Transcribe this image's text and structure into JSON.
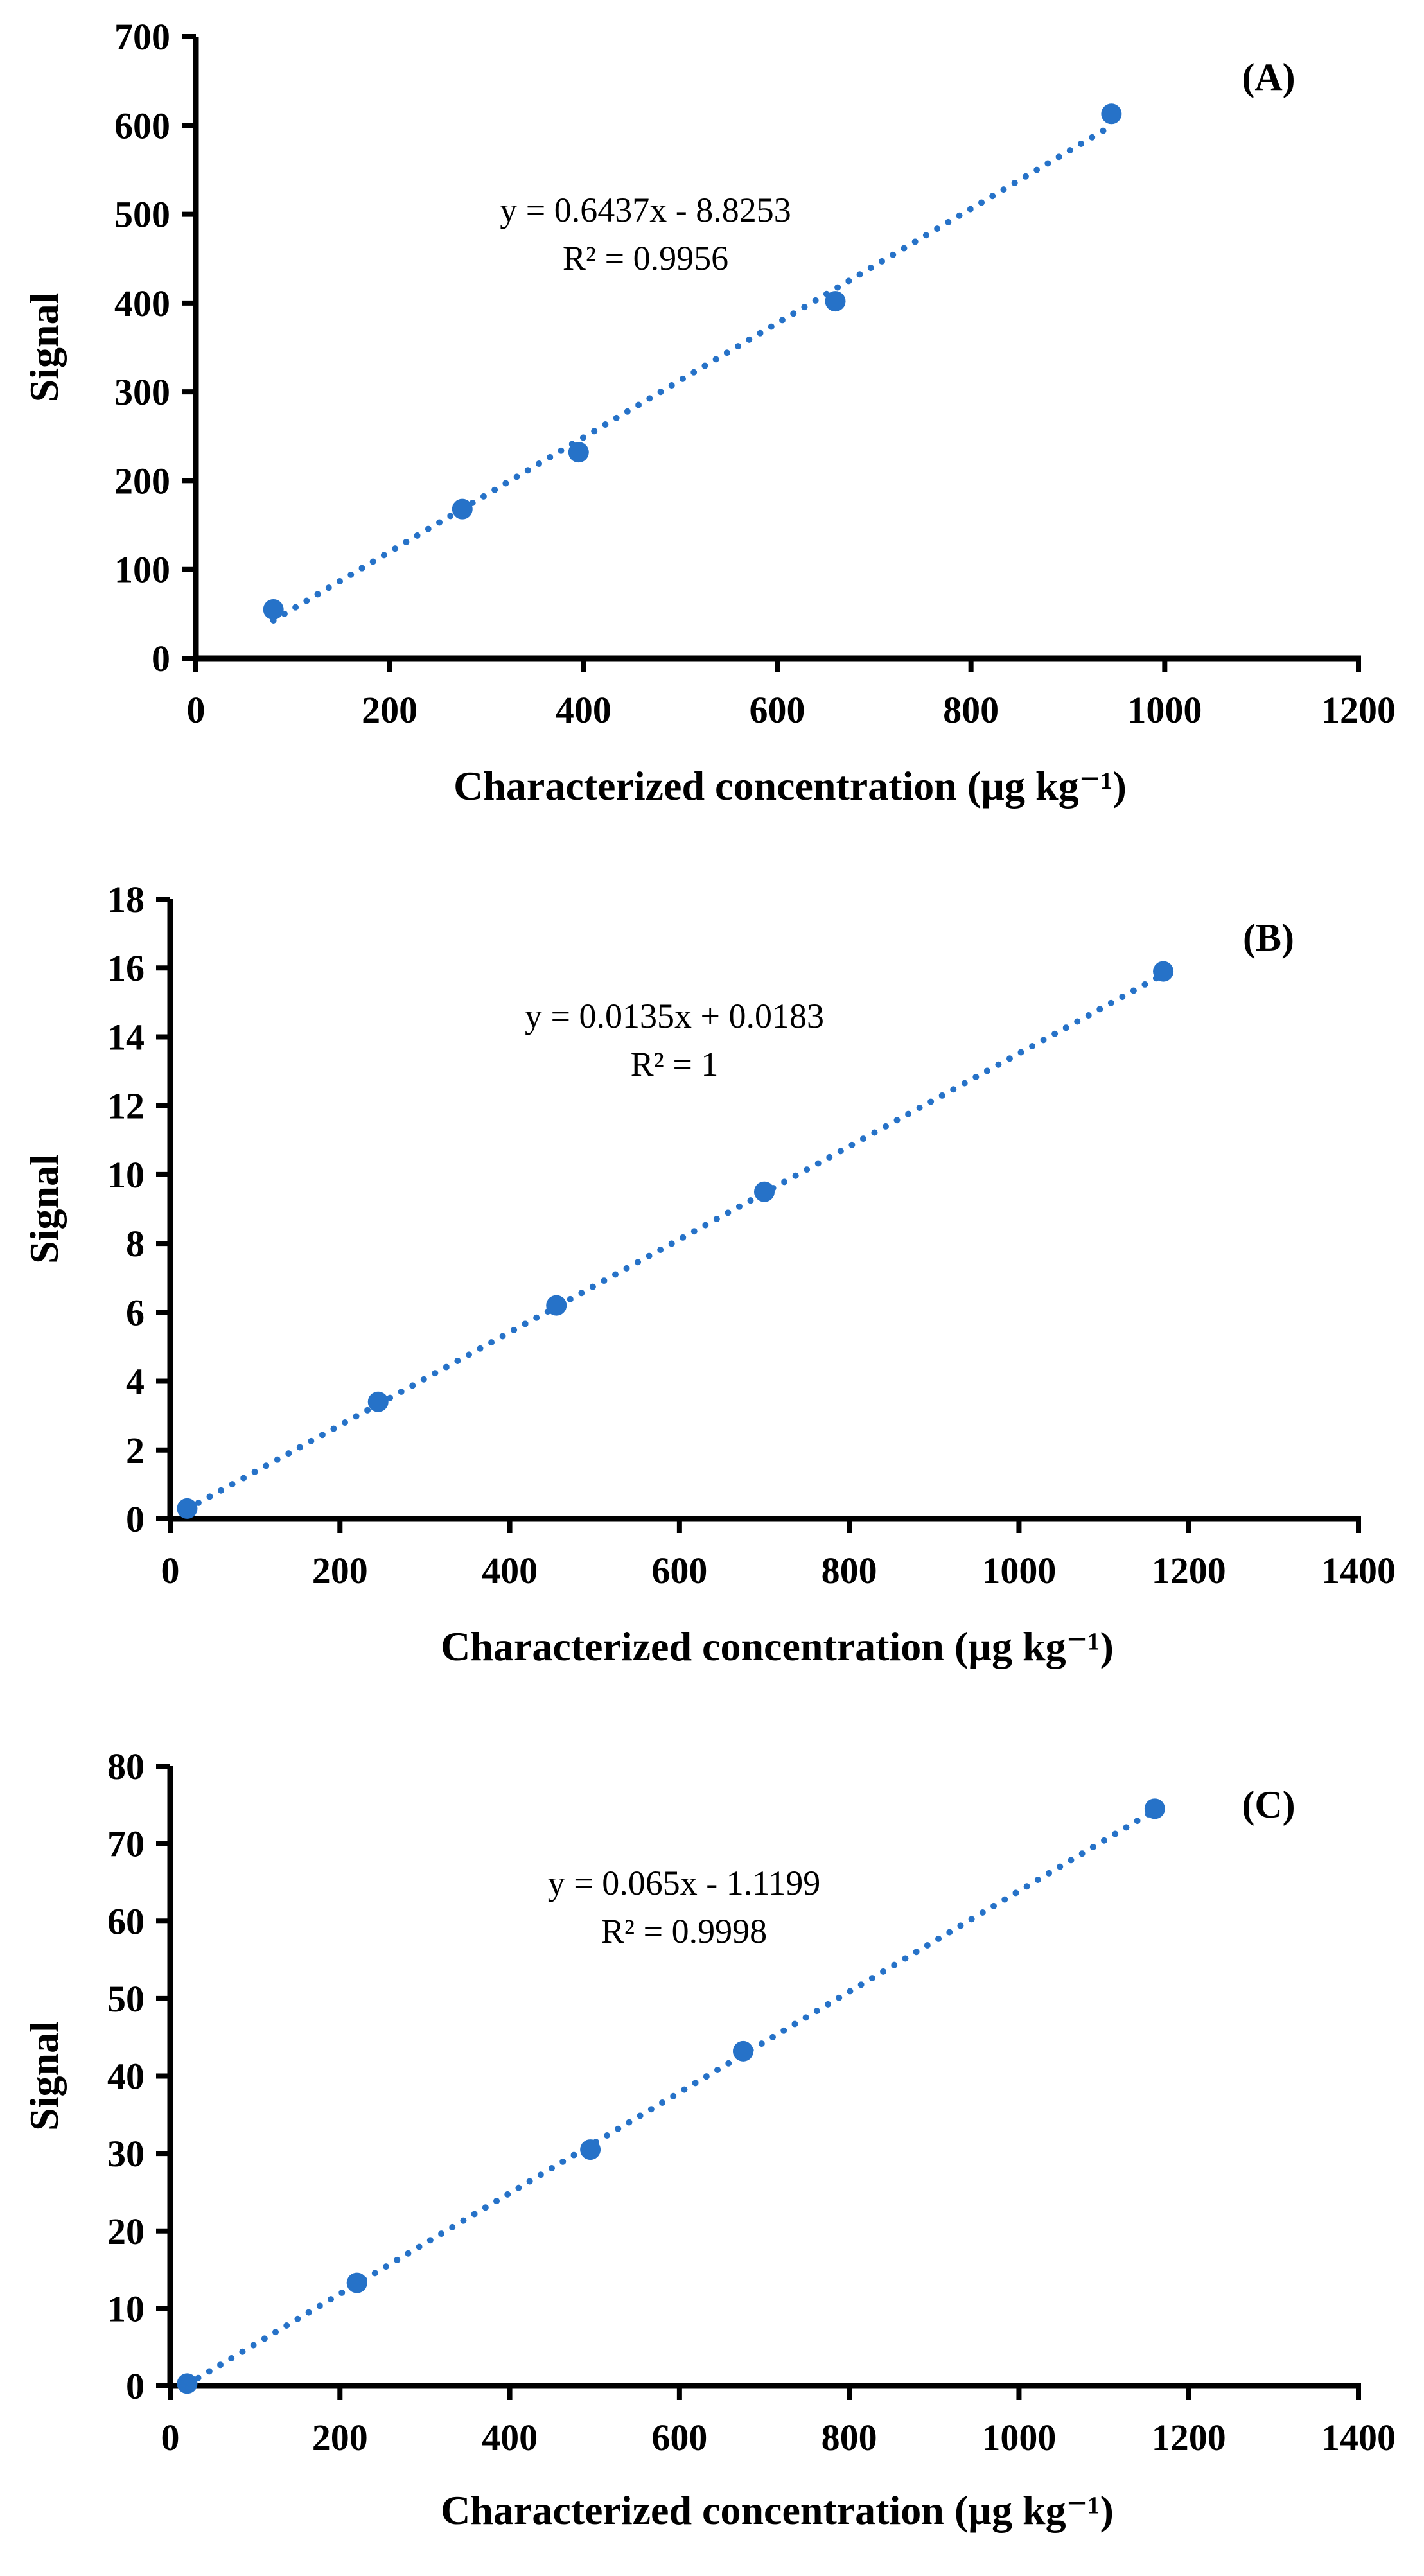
{
  "figure": {
    "colors": {
      "marker": "#2672C8",
      "trendline": "#2672C8",
      "axis": "#000000"
    }
  },
  "chart_data": [
    {
      "type": "scatter",
      "panel_label": "(A)",
      "xlabel": "Characterized concentration (µg kg⁻¹)",
      "ylabel": "Signal",
      "xlim": [
        0,
        1200
      ],
      "ylim": [
        0,
        700
      ],
      "xticks": [
        0,
        200,
        400,
        600,
        800,
        1000,
        1200
      ],
      "yticks": [
        0,
        100,
        200,
        300,
        400,
        500,
        600,
        700
      ],
      "series": [
        {
          "name": "Signal",
          "x": [
            80,
            275,
            395,
            660,
            945
          ],
          "y": [
            55,
            168,
            232,
            402,
            613
          ]
        }
      ],
      "trendline": {
        "type": "linear",
        "slope": 0.6437,
        "intercept": -8.8253,
        "x_range": [
          80,
          945
        ]
      },
      "equation": "y = 0.6437x - 8.8253",
      "r_squared": "R² = 0.9956"
    },
    {
      "type": "scatter",
      "panel_label": "(B)",
      "xlabel": "Characterized concentration (µg kg⁻¹)",
      "ylabel": "Signal",
      "xlim": [
        0,
        1400
      ],
      "ylim": [
        0,
        18
      ],
      "xticks": [
        0,
        200,
        400,
        600,
        800,
        1000,
        1200,
        1400
      ],
      "yticks": [
        0,
        2,
        4,
        6,
        8,
        10,
        12,
        14,
        16,
        18
      ],
      "series": [
        {
          "name": "Signal",
          "x": [
            20,
            245,
            455,
            700,
            1170
          ],
          "y": [
            0.3,
            3.4,
            6.2,
            9.5,
            15.9
          ]
        }
      ],
      "trendline": {
        "type": "linear",
        "slope": 0.0135,
        "intercept": 0.0183,
        "x_range": [
          20,
          1170
        ]
      },
      "equation": "y = 0.0135x + 0.0183",
      "r_squared": "R² = 1"
    },
    {
      "type": "scatter",
      "panel_label": "(C)",
      "xlabel": "Characterized concentration (µg kg⁻¹)",
      "ylabel": "Signal",
      "xlim": [
        0,
        1400
      ],
      "ylim": [
        0,
        80
      ],
      "xticks": [
        0,
        200,
        400,
        600,
        800,
        1000,
        1200,
        1400
      ],
      "yticks": [
        0,
        10,
        20,
        30,
        40,
        50,
        60,
        70,
        80
      ],
      "series": [
        {
          "name": "Signal",
          "x": [
            20,
            220,
            495,
            675,
            1160
          ],
          "y": [
            0.3,
            13.3,
            30.5,
            43.2,
            74.5
          ]
        }
      ],
      "trendline": {
        "type": "linear",
        "slope": 0.065,
        "intercept": -1.1199,
        "x_range": [
          20,
          1160
        ]
      },
      "equation": "y = 0.065x - 1.1199",
      "r_squared": "R² = 0.9998"
    }
  ]
}
